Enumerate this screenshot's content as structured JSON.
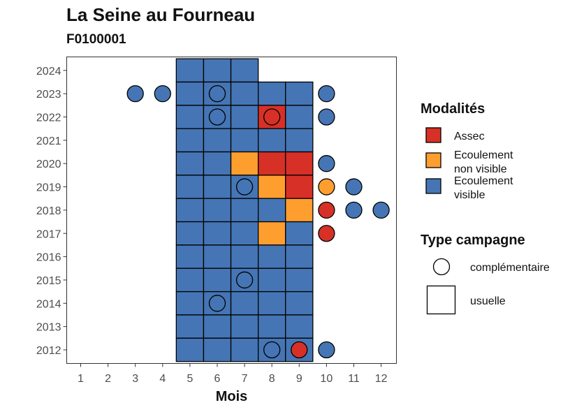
{
  "chart_data": {
    "type": "heatmap",
    "title": "La Seine au Fourneau",
    "subtitle": "F0100001",
    "xlabel": "Mois",
    "ylabel": "",
    "x_ticks": [
      1,
      2,
      3,
      4,
      5,
      6,
      7,
      8,
      9,
      10,
      11,
      12
    ],
    "y_ticks": [
      2012,
      2013,
      2014,
      2015,
      2016,
      2017,
      2018,
      2019,
      2020,
      2021,
      2022,
      2023,
      2024
    ],
    "xlim": [
      0.5,
      12.5
    ],
    "ylim": [
      2011.5,
      2024.6
    ],
    "legend_position": "right",
    "colors": {
      "Assec": "#d73027",
      "Ecoulement non visible": "#fd9e2f",
      "Ecoulement visible": "#4575b4"
    },
    "legend": {
      "modalites_title": "Modalités",
      "modalites": [
        {
          "key": "Assec",
          "label_lines": [
            "Assec"
          ]
        },
        {
          "key": "Ecoulement non visible",
          "label_lines": [
            "Ecoulement",
            "non visible"
          ]
        },
        {
          "key": "Ecoulement visible",
          "label_lines": [
            "Ecoulement",
            "visible"
          ]
        }
      ],
      "type_title": "Type campagne",
      "types": [
        {
          "key": "complementaire",
          "shape": "circle",
          "label": "complémentaire"
        },
        {
          "key": "usuelle",
          "shape": "square",
          "label": "usuelle"
        }
      ]
    },
    "points": [
      {
        "year": 2024,
        "month": 5,
        "type": "usuelle",
        "modalite": "Ecoulement visible"
      },
      {
        "year": 2024,
        "month": 6,
        "type": "usuelle",
        "modalite": "Ecoulement visible"
      },
      {
        "year": 2024,
        "month": 7,
        "type": "usuelle",
        "modalite": "Ecoulement visible"
      },
      {
        "year": 2023,
        "month": 3,
        "type": "complementaire",
        "modalite": "Ecoulement visible"
      },
      {
        "year": 2023,
        "month": 4,
        "type": "complementaire",
        "modalite": "Ecoulement visible"
      },
      {
        "year": 2023,
        "month": 5,
        "type": "usuelle",
        "modalite": "Ecoulement visible"
      },
      {
        "year": 2023,
        "month": 6,
        "type": "usuelle",
        "modalite": "Ecoulement visible"
      },
      {
        "year": 2023,
        "month": 6,
        "type": "complementaire",
        "modalite": "Ecoulement visible"
      },
      {
        "year": 2023,
        "month": 7,
        "type": "usuelle",
        "modalite": "Ecoulement visible"
      },
      {
        "year": 2023,
        "month": 8,
        "type": "usuelle",
        "modalite": "Ecoulement visible"
      },
      {
        "year": 2023,
        "month": 9,
        "type": "usuelle",
        "modalite": "Ecoulement visible"
      },
      {
        "year": 2023,
        "month": 10,
        "type": "complementaire",
        "modalite": "Ecoulement visible"
      },
      {
        "year": 2022,
        "month": 5,
        "type": "usuelle",
        "modalite": "Ecoulement visible"
      },
      {
        "year": 2022,
        "month": 6,
        "type": "usuelle",
        "modalite": "Ecoulement visible"
      },
      {
        "year": 2022,
        "month": 6,
        "type": "complementaire",
        "modalite": "Ecoulement visible"
      },
      {
        "year": 2022,
        "month": 7,
        "type": "usuelle",
        "modalite": "Ecoulement visible"
      },
      {
        "year": 2022,
        "month": 8,
        "type": "usuelle",
        "modalite": "Assec"
      },
      {
        "year": 2022,
        "month": 8,
        "type": "complementaire",
        "modalite": "Assec"
      },
      {
        "year": 2022,
        "month": 9,
        "type": "usuelle",
        "modalite": "Ecoulement visible"
      },
      {
        "year": 2022,
        "month": 10,
        "type": "complementaire",
        "modalite": "Ecoulement visible"
      },
      {
        "year": 2021,
        "month": 5,
        "type": "usuelle",
        "modalite": "Ecoulement visible"
      },
      {
        "year": 2021,
        "month": 6,
        "type": "usuelle",
        "modalite": "Ecoulement visible"
      },
      {
        "year": 2021,
        "month": 7,
        "type": "usuelle",
        "modalite": "Ecoulement visible"
      },
      {
        "year": 2021,
        "month": 8,
        "type": "usuelle",
        "modalite": "Ecoulement visible"
      },
      {
        "year": 2021,
        "month": 9,
        "type": "usuelle",
        "modalite": "Ecoulement visible"
      },
      {
        "year": 2020,
        "month": 5,
        "type": "usuelle",
        "modalite": "Ecoulement visible"
      },
      {
        "year": 2020,
        "month": 6,
        "type": "usuelle",
        "modalite": "Ecoulement visible"
      },
      {
        "year": 2020,
        "month": 7,
        "type": "usuelle",
        "modalite": "Ecoulement non visible"
      },
      {
        "year": 2020,
        "month": 8,
        "type": "usuelle",
        "modalite": "Assec"
      },
      {
        "year": 2020,
        "month": 9,
        "type": "usuelle",
        "modalite": "Assec"
      },
      {
        "year": 2020,
        "month": 10,
        "type": "complementaire",
        "modalite": "Ecoulement visible"
      },
      {
        "year": 2019,
        "month": 5,
        "type": "usuelle",
        "modalite": "Ecoulement visible"
      },
      {
        "year": 2019,
        "month": 6,
        "type": "usuelle",
        "modalite": "Ecoulement visible"
      },
      {
        "year": 2019,
        "month": 7,
        "type": "usuelle",
        "modalite": "Ecoulement visible"
      },
      {
        "year": 2019,
        "month": 7,
        "type": "complementaire",
        "modalite": "Ecoulement visible"
      },
      {
        "year": 2019,
        "month": 8,
        "type": "usuelle",
        "modalite": "Ecoulement non visible"
      },
      {
        "year": 2019,
        "month": 9,
        "type": "usuelle",
        "modalite": "Assec"
      },
      {
        "year": 2019,
        "month": 10,
        "type": "complementaire",
        "modalite": "Ecoulement non visible"
      },
      {
        "year": 2019,
        "month": 11,
        "type": "complementaire",
        "modalite": "Ecoulement visible"
      },
      {
        "year": 2018,
        "month": 5,
        "type": "usuelle",
        "modalite": "Ecoulement visible"
      },
      {
        "year": 2018,
        "month": 6,
        "type": "usuelle",
        "modalite": "Ecoulement visible"
      },
      {
        "year": 2018,
        "month": 7,
        "type": "usuelle",
        "modalite": "Ecoulement visible"
      },
      {
        "year": 2018,
        "month": 8,
        "type": "usuelle",
        "modalite": "Ecoulement visible"
      },
      {
        "year": 2018,
        "month": 9,
        "type": "usuelle",
        "modalite": "Ecoulement non visible"
      },
      {
        "year": 2018,
        "month": 10,
        "type": "complementaire",
        "modalite": "Assec"
      },
      {
        "year": 2018,
        "month": 11,
        "type": "complementaire",
        "modalite": "Ecoulement visible"
      },
      {
        "year": 2018,
        "month": 12,
        "type": "complementaire",
        "modalite": "Ecoulement visible"
      },
      {
        "year": 2017,
        "month": 5,
        "type": "usuelle",
        "modalite": "Ecoulement visible"
      },
      {
        "year": 2017,
        "month": 6,
        "type": "usuelle",
        "modalite": "Ecoulement visible"
      },
      {
        "year": 2017,
        "month": 7,
        "type": "usuelle",
        "modalite": "Ecoulement visible"
      },
      {
        "year": 2017,
        "month": 8,
        "type": "usuelle",
        "modalite": "Ecoulement non visible"
      },
      {
        "year": 2017,
        "month": 9,
        "type": "usuelle",
        "modalite": "Ecoulement visible"
      },
      {
        "year": 2017,
        "month": 10,
        "type": "complementaire",
        "modalite": "Assec"
      },
      {
        "year": 2016,
        "month": 5,
        "type": "usuelle",
        "modalite": "Ecoulement visible"
      },
      {
        "year": 2016,
        "month": 6,
        "type": "usuelle",
        "modalite": "Ecoulement visible"
      },
      {
        "year": 2016,
        "month": 7,
        "type": "usuelle",
        "modalite": "Ecoulement visible"
      },
      {
        "year": 2016,
        "month": 8,
        "type": "usuelle",
        "modalite": "Ecoulement visible"
      },
      {
        "year": 2016,
        "month": 9,
        "type": "usuelle",
        "modalite": "Ecoulement visible"
      },
      {
        "year": 2015,
        "month": 5,
        "type": "usuelle",
        "modalite": "Ecoulement visible"
      },
      {
        "year": 2015,
        "month": 6,
        "type": "usuelle",
        "modalite": "Ecoulement visible"
      },
      {
        "year": 2015,
        "month": 7,
        "type": "usuelle",
        "modalite": "Ecoulement visible"
      },
      {
        "year": 2015,
        "month": 7,
        "type": "complementaire",
        "modalite": "Ecoulement visible"
      },
      {
        "year": 2015,
        "month": 8,
        "type": "usuelle",
        "modalite": "Ecoulement visible"
      },
      {
        "year": 2015,
        "month": 9,
        "type": "usuelle",
        "modalite": "Ecoulement visible"
      },
      {
        "year": 2014,
        "month": 5,
        "type": "usuelle",
        "modalite": "Ecoulement visible"
      },
      {
        "year": 2014,
        "month": 6,
        "type": "usuelle",
        "modalite": "Ecoulement visible"
      },
      {
        "year": 2014,
        "month": 6,
        "type": "complementaire",
        "modalite": "Ecoulement visible"
      },
      {
        "year": 2014,
        "month": 7,
        "type": "usuelle",
        "modalite": "Ecoulement visible"
      },
      {
        "year": 2014,
        "month": 8,
        "type": "usuelle",
        "modalite": "Ecoulement visible"
      },
      {
        "year": 2014,
        "month": 9,
        "type": "usuelle",
        "modalite": "Ecoulement visible"
      },
      {
        "year": 2013,
        "month": 5,
        "type": "usuelle",
        "modalite": "Ecoulement visible"
      },
      {
        "year": 2013,
        "month": 6,
        "type": "usuelle",
        "modalite": "Ecoulement visible"
      },
      {
        "year": 2013,
        "month": 7,
        "type": "usuelle",
        "modalite": "Ecoulement visible"
      },
      {
        "year": 2013,
        "month": 8,
        "type": "usuelle",
        "modalite": "Ecoulement visible"
      },
      {
        "year": 2013,
        "month": 9,
        "type": "usuelle",
        "modalite": "Ecoulement visible"
      },
      {
        "year": 2012,
        "month": 5,
        "type": "usuelle",
        "modalite": "Ecoulement visible"
      },
      {
        "year": 2012,
        "month": 6,
        "type": "usuelle",
        "modalite": "Ecoulement visible"
      },
      {
        "year": 2012,
        "month": 7,
        "type": "usuelle",
        "modalite": "Ecoulement visible"
      },
      {
        "year": 2012,
        "month": 8,
        "type": "usuelle",
        "modalite": "Ecoulement visible"
      },
      {
        "year": 2012,
        "month": 8,
        "type": "complementaire",
        "modalite": "Ecoulement visible"
      },
      {
        "year": 2012,
        "month": 9,
        "type": "usuelle",
        "modalite": "Ecoulement visible"
      },
      {
        "year": 2012,
        "month": 9,
        "type": "complementaire",
        "modalite": "Assec"
      },
      {
        "year": 2012,
        "month": 10,
        "type": "complementaire",
        "modalite": "Ecoulement visible"
      }
    ]
  }
}
